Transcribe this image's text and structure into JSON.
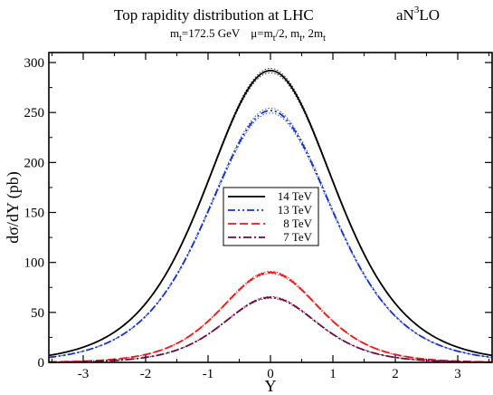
{
  "chart_data": {
    "type": "line",
    "title": "Top rapidity distribution at  LHC",
    "order_label": {
      "base": "aN",
      "sup": "3",
      "tail": "LO"
    },
    "subtitle": {
      "mass_base": "m",
      "mass_sub": "t",
      "mass_value": "=172.5 GeV",
      "mu_text": "μ=m",
      "mu_sub1": "t",
      "mu_mid1": "/2, m",
      "mu_sub2": "t",
      "mu_mid2": ", 2m",
      "mu_sub3": "t"
    },
    "xlabel": "Y",
    "ylabel": "dσ/dY (pb)",
    "xlim": [
      -3.55,
      3.55
    ],
    "ylim": [
      0,
      310
    ],
    "xticks": [
      -3,
      -2,
      -1,
      0,
      1,
      2,
      3
    ],
    "yticks": [
      0,
      50,
      100,
      150,
      200,
      250,
      300
    ],
    "grid": false,
    "legend_position": "center",
    "series": [
      {
        "name": "14 TeV",
        "color": "#000000",
        "dash": "",
        "peak": 292,
        "width": 1.39,
        "band": 2.2
      },
      {
        "name": "13 TeV",
        "color": "#1030e0",
        "dash": "8 3 2 3 2 3",
        "peak": 252,
        "width": 1.34,
        "band": 2.5
      },
      {
        "name": "8 TeV",
        "color": "#ff1010",
        "dash": "9 4",
        "peak": 90,
        "width": 1.06,
        "band": 1.2
      },
      {
        "name": "7 TeV",
        "color": "#6a0a3e",
        "dash": "9 3 2 3",
        "peak": 65,
        "width": 1.02,
        "band": 0.9
      }
    ]
  }
}
